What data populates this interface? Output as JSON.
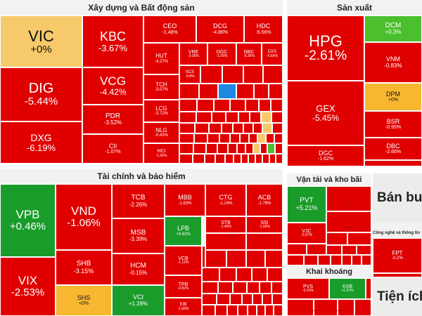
{
  "colors": {
    "down": "#e00000",
    "flat": "#f7b731",
    "flat_light": "#f6c96a",
    "up": "#1a9c2b",
    "up_small": "#4cbf2f",
    "blue": "#1e88e5",
    "panel": "#ececec"
  },
  "chart_data": {
    "type": "treemap",
    "title": "",
    "sectors": [
      {
        "name": "Xây dựng và Bất động sản",
        "stocks": [
          {
            "symbol": "VIC",
            "change": "+0%",
            "value": 0.0
          },
          {
            "symbol": "KBC",
            "change": "-3.67%",
            "value": -3.67
          },
          {
            "symbol": "DIG",
            "change": "-5.44%",
            "value": -5.44
          },
          {
            "symbol": "VCG",
            "change": "-4.42%",
            "value": -4.42
          },
          {
            "symbol": "DXG",
            "change": "-6.19%",
            "value": -6.19
          },
          {
            "symbol": "PDR",
            "change": "-3.52%",
            "value": -3.52
          },
          {
            "symbol": "CII",
            "change": "-1.07%",
            "value": -1.07
          },
          {
            "symbol": "CEO",
            "change": "-1.48%",
            "value": -1.48
          },
          {
            "symbol": "DCG",
            "change": "-4.86%",
            "value": -4.86
          },
          {
            "symbol": "HDC",
            "change": "-5.56%",
            "value": -5.56
          },
          {
            "symbol": "HUT",
            "change": "-4.27%",
            "value": -4.27
          },
          {
            "symbol": "TCH",
            "change": "-3.07%",
            "value": -3.07
          },
          {
            "symbol": "LCG",
            "change": "-3.72%",
            "value": -3.72
          },
          {
            "symbol": "NLG",
            "change": "-0.43%",
            "value": -0.43
          },
          {
            "symbol": "HCI",
            "change": "-1.96%",
            "value": -1.96
          },
          {
            "symbol": "VRE",
            "change": "-3.06%",
            "value": -3.06
          },
          {
            "symbol": "DGC",
            "change": "-1.06%",
            "value": -1.06
          },
          {
            "symbol": "NBC",
            "change": "-5.36%",
            "value": -5.36
          },
          {
            "symbol": "DXS",
            "change": "-6.66%",
            "value": -6.66
          },
          {
            "symbol": "SCS",
            "change": "-0.8%",
            "value": -0.8
          }
        ]
      },
      {
        "name": "Sản xuất",
        "stocks": [
          {
            "symbol": "HPG",
            "change": "-2.61%",
            "value": -2.61
          },
          {
            "symbol": "DCM",
            "change": "+0.3%",
            "value": 0.3
          },
          {
            "symbol": "VNM",
            "change": "-0.83%",
            "value": -0.83
          },
          {
            "symbol": "DPM",
            "change": "+0%",
            "value": 0.0
          },
          {
            "symbol": "GEX",
            "change": "-5.45%",
            "value": -5.45
          },
          {
            "symbol": "BSR",
            "change": "-0.95%",
            "value": -0.95
          },
          {
            "symbol": "DGC",
            "change": "-1.62%",
            "value": -1.62
          },
          {
            "symbol": "DBC",
            "change": "-2.66%",
            "value": -2.66
          }
        ]
      },
      {
        "name": "Tài chính và bảo hiểm",
        "stocks": [
          {
            "symbol": "VPB",
            "change": "+0.46%",
            "value": 0.46
          },
          {
            "symbol": "VND",
            "change": "-1.06%",
            "value": -1.06
          },
          {
            "symbol": "VIX",
            "change": "-2.53%",
            "value": -2.53
          },
          {
            "symbol": "SHB",
            "change": "-3.15%",
            "value": -3.15
          },
          {
            "symbol": "SHS",
            "change": "+0%",
            "value": 0.0
          },
          {
            "symbol": "TCB",
            "change": "-2.26%",
            "value": -2.26
          },
          {
            "symbol": "MSB",
            "change": "-3.39%",
            "value": -3.39
          },
          {
            "symbol": "HCM",
            "change": "-0.15%",
            "value": -0.15
          },
          {
            "symbol": "VCI",
            "change": "+1.28%",
            "value": 1.28
          },
          {
            "symbol": "MBB",
            "change": "-1.63%",
            "value": -1.63
          },
          {
            "symbol": "CTG",
            "change": "-1.24%",
            "value": -1.24
          },
          {
            "symbol": "ACB",
            "change": "-1.76%",
            "value": -1.76
          },
          {
            "symbol": "LPB",
            "change": "+0.62%",
            "value": 0.62
          },
          {
            "symbol": "VCB",
            "change": "-1.12%",
            "value": -1.12
          },
          {
            "symbol": "SSI",
            "change": "-1.06%",
            "value": -1.06
          },
          {
            "symbol": "TPB",
            "change": "-0.82%",
            "value": -0.82
          },
          {
            "symbol": "STB",
            "change": "-1.46%",
            "value": -1.46
          },
          {
            "symbol": "EIB",
            "change": "-1.68%",
            "value": -1.68
          }
        ]
      },
      {
        "name": "Vận tải và kho bãi",
        "stocks": [
          {
            "symbol": "PVT",
            "change": "+5.21%",
            "value": 5.21
          },
          {
            "symbol": "VJC",
            "change": "-0.27%",
            "value": -0.27
          }
        ]
      },
      {
        "name": "Khai khoáng",
        "stocks": [
          {
            "symbol": "PVS",
            "change": "-0.23%",
            "value": -0.23
          },
          {
            "symbol": "KSB",
            "change": "+1.27%",
            "value": 1.27
          }
        ]
      },
      {
        "name": "Bán buôn",
        "stocks": []
      },
      {
        "name": "Công nghệ và thông tin",
        "stocks": [
          {
            "symbol": "FPT",
            "change": "-0.2%",
            "value": -0.2
          }
        ]
      },
      {
        "name": "Tiện ích",
        "stocks": []
      }
    ]
  }
}
